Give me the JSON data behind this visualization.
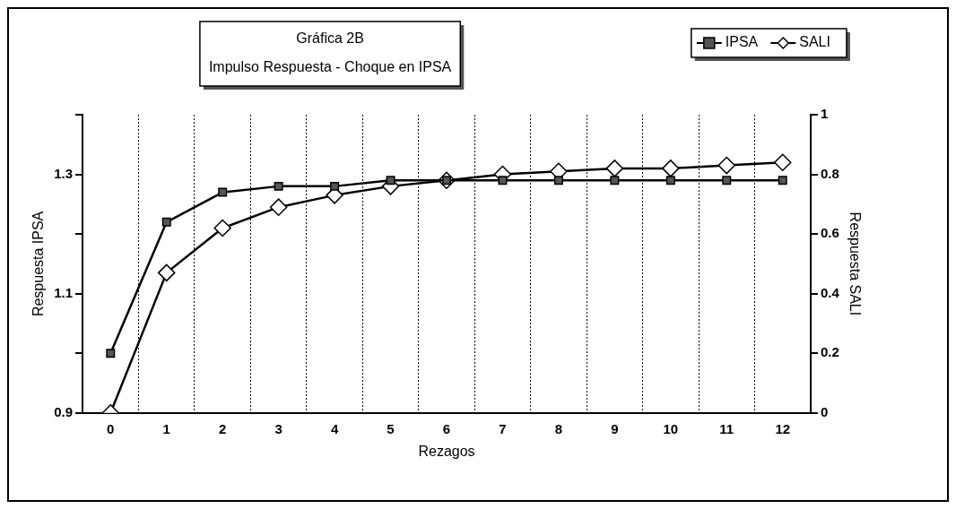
{
  "chart_data": {
    "type": "line",
    "title": "Gráfica 2B",
    "subtitle": "Impulso Respuesta - Choque en IPSA",
    "xlabel": "Rezagos",
    "ylabel": "Respuesta IPSA",
    "y2label": "Respuesta SALI",
    "categories": [
      "0",
      "1",
      "2",
      "3",
      "4",
      "5",
      "6",
      "7",
      "8",
      "9",
      "10",
      "11",
      "12"
    ],
    "series": [
      {
        "name": "IPSA",
        "color": "#000000",
        "marker": "square",
        "values": [
          1.0,
          1.22,
          1.27,
          1.28,
          1.28,
          1.29,
          1.29,
          1.29,
          1.29,
          1.29,
          1.29,
          1.29,
          1.29
        ]
      },
      {
        "name": "SALI",
        "color": "#000000",
        "marker": "diamond",
        "axis": "y2",
        "values": [
          0,
          0.47,
          0.62,
          0.69,
          0.73,
          0.76,
          0.78,
          0.8,
          0.81,
          0.82,
          0.82,
          0.83,
          0.84
        ]
      }
    ],
    "ylim": [
      0.9,
      1.4
    ],
    "yticks": [
      0.9,
      {
        "value": 1.0,
        "label": null
      },
      1.1,
      {
        "value": 1.2,
        "label": null
      },
      1.3,
      {
        "value": 1.4,
        "label": null
      }
    ],
    "y2lim": [
      0,
      1
    ],
    "y2ticks": [
      0,
      0.2,
      0.4,
      0.6,
      0.8,
      1
    ],
    "grid": "x",
    "legend": "top right",
    "line_style": "solid"
  }
}
